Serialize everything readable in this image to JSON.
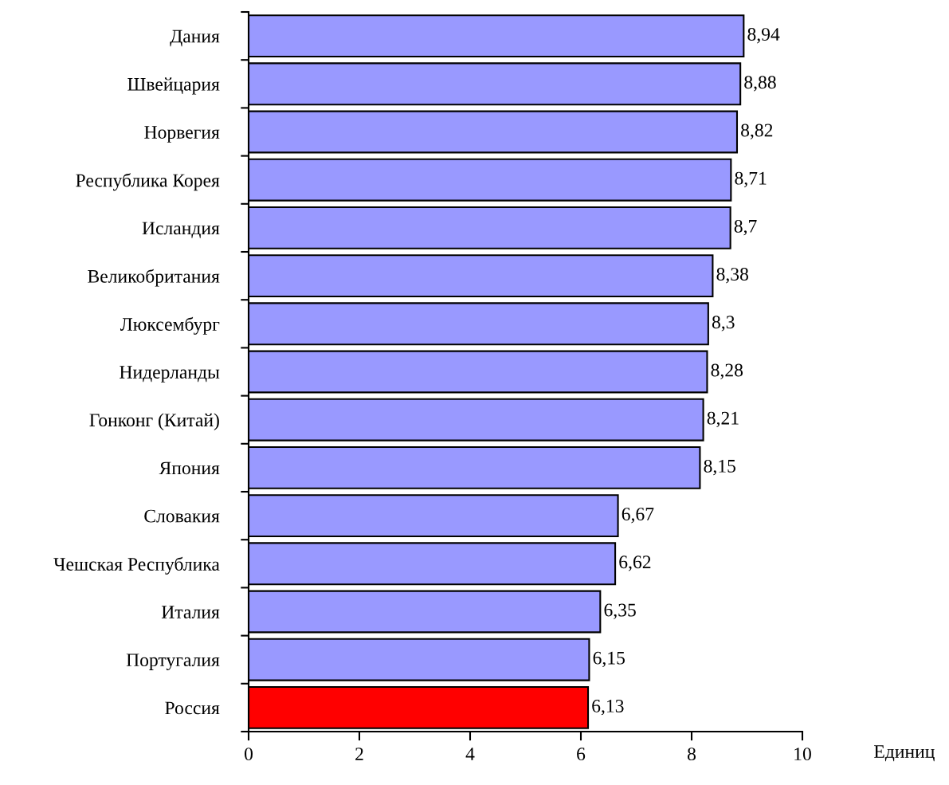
{
  "chart_data": {
    "type": "bar",
    "orientation": "horizontal",
    "categories": [
      "Дания",
      "Швейцария",
      "Норвегия",
      "Республика Корея",
      "Исландия",
      "Великобритания",
      "Люксембург",
      "Нидерланды",
      "Гонконг (Китай)",
      "Япония",
      "Словакия",
      "Чешская Республика",
      "Италия",
      "Португалия",
      "Россия"
    ],
    "values": [
      8.94,
      8.88,
      8.82,
      8.71,
      8.7,
      8.38,
      8.3,
      8.28,
      8.21,
      8.15,
      6.67,
      6.62,
      6.35,
      6.15,
      6.13
    ],
    "colors": [
      "#9999ff",
      "#9999ff",
      "#9999ff",
      "#9999ff",
      "#9999ff",
      "#9999ff",
      "#9999ff",
      "#9999ff",
      "#9999ff",
      "#9999ff",
      "#9999ff",
      "#9999ff",
      "#9999ff",
      "#9999ff",
      "#ff0000"
    ],
    "value_labels": [
      "8,94",
      "8,88",
      "8,82",
      "8,71",
      "8,7",
      "8,38",
      "8,3",
      "8,28",
      "8,21",
      "8,15",
      "6,67",
      "6,62",
      "6,35",
      "6,15",
      "6,13"
    ],
    "xlim": [
      0,
      10
    ],
    "xticks": [
      0,
      2,
      4,
      6,
      8,
      10
    ],
    "xlabel": "Единиц"
  }
}
